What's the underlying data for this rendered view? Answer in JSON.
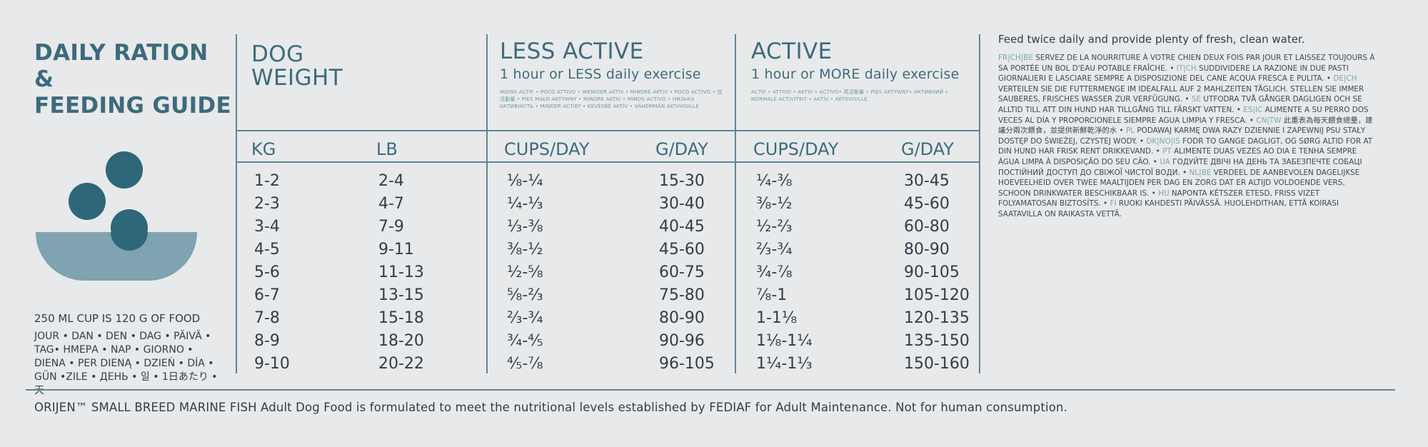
{
  "guide": {
    "title_line1": "DAILY RATION &",
    "title_line2": "FEEDING GUIDE",
    "cup_note": "250 ML CUP IS 120 G OF FOOD",
    "feed_words": "JOUR • DAN • DEN • DAG • PÄIVÄ • TAG• ΗΜΕΡΑ • NAP • GIORNO • DIENA • PER DIENĄ • DZIEŃ • DÍA • GÜN •ZILE • ДЕНЬ • 일 • 1日あたり • 天"
  },
  "headers": {
    "dog_weight_line1": "DOG",
    "dog_weight_line2": "WEIGHT",
    "less_active": "LESS ACTIVE",
    "less_active_sub": "1 hour or LESS daily exercise",
    "less_active_micro": "MOINS ACTIF • POCO ATTIVO • WENIGER AKTIV • MINDRE AKTIV • POCO ACTIVO • 低活動量 • PIES MAŁO AKTYWNY • MINDRE AKTIV • MINDS ACTIVO • НИЗЬКА АКТИВНІСТЬ • MINDER ACTIEF • KEVÉSBÉ AKTÍV • VÄHEMMÄN AKTIIVISILLE",
    "active": "ACTIVE",
    "active_sub": "1 hour or MORE daily exercise",
    "active_micro": "ACTIF • ATTIVO • AKTIV • ACTIVO• 高活動量 • PIES AKTYWNY• АКТИВНИЙ • NORMALE ACTIVITEIT • AKTÍV • AKTIIVISILLE",
    "kg": "KG",
    "lb": "LB",
    "cups_day": "CUPS/DAY",
    "g_day": "G/DAY"
  },
  "rows": [
    {
      "kg": "1-2",
      "lb": "2-4",
      "less_cups": "⅛-¼",
      "less_g": "15-30",
      "active_cups": "¼-⅜",
      "active_g": "30-45"
    },
    {
      "kg": "2-3",
      "lb": "4-7",
      "less_cups": "¼-⅓",
      "less_g": "30-40",
      "active_cups": "⅜-½",
      "active_g": "45-60"
    },
    {
      "kg": "3-4",
      "lb": "7-9",
      "less_cups": "⅓-⅜",
      "less_g": "40-45",
      "active_cups": "½-⅔",
      "active_g": "60-80"
    },
    {
      "kg": "4-5",
      "lb": "9-11",
      "less_cups": "⅜-½",
      "less_g": "45-60",
      "active_cups": "⅔-¾",
      "active_g": "80-90"
    },
    {
      "kg": "5-6",
      "lb": "11-13",
      "less_cups": "½-⅝",
      "less_g": "60-75",
      "active_cups": "¾-⅞",
      "active_g": "90-105"
    },
    {
      "kg": "6-7",
      "lb": "13-15",
      "less_cups": "⅝-⅔",
      "less_g": "75-80",
      "active_cups": "⅞-1",
      "active_g": "105-120"
    },
    {
      "kg": "7-8",
      "lb": "15-18",
      "less_cups": "⅔-¾",
      "less_g": "80-90",
      "active_cups": "1-1⅛",
      "active_g": "120-135"
    },
    {
      "kg": "8-9",
      "lb": "18-20",
      "less_cups": "¾-⅘",
      "less_g": "90-96",
      "active_cups": "1⅛-1¼",
      "active_g": "135-150"
    },
    {
      "kg": "9-10",
      "lb": "20-22",
      "less_cups": "⅘-⅞",
      "less_g": "96-105",
      "active_cups": "1¼-1⅓",
      "active_g": "150-160"
    }
  ],
  "right": {
    "intro": "Feed twice daily and provide plenty of fresh, clean water.",
    "fr_tag": "FR|CH|BE",
    "fr": "SERVEZ DE LA NOURRITURE À VOTRE CHIEN DEUX FOIS PAR JOUR ET LAISSEZ TOUJOURS À SA PORTÉE UN BOL D'EAU POTABLE FRAÎCHE. •",
    "it_tag": "IT|CH",
    "it": "SUDDIVIDERE LA RAZIONE IN DUE PASTI GIORNALIERI E LASCIARE SEMPRE A DISPOSIZIONE DEL CANE ACQUA FRESCA E PULITA. •",
    "de_tag": "DE|CH",
    "de": "VERTEILEN SIE DIE FUTTERMENGE IM IDEALFALL AUF 2 MAHLZEITEN TÄGLICH. STELLEN SIE IMMER SAUBERES, FRISCHES WASSER ZUR VERFÜGUNG. •",
    "se_tag": "SE",
    "se": "UTFODRA TVÅ GÅNGER DAGLIGEN OCH SE ALLTID TILL ATT DIN HUND HAR TILLGÅNG TILL FÄRSKT VATTEN. •",
    "es_tag": "ES|IC",
    "es": "ALIMENTE A SU PERRO DOS VECES AL DÍA Y PROPORCIONELE SIEMPRE AGUA LIMPIA Y FRESCA. •",
    "cn_tag": "CN|TW",
    "cn": "此重表為每天餵食總量，建議分兩次餵食，並提供新鮮乾淨的水 •",
    "pl_tag": "PL",
    "pl": "PODAWAJ KARMĘ DWA RAZY DZIENNIE I ZAPEWNIJ PSU STAŁY DOSTĘP DO ŚWIEŻEJ, CZYSTEJ WODY. •",
    "dk_tag": "DK|NO|IS",
    "dk": "FODR TO GANGE DAGLIGT, OG SØRG ALTID FOR AT DIN HUND HAR FRISK RENT DRIKKEVAND. •",
    "pt_tag": "PT",
    "pt": "ALIMENTE DUAS VEZES AO DIA E TENHA SEMPRE ÁGUA LIMPA À DISPOSIÇÃO DO SEU CÃO. •",
    "ua_tag": "UA",
    "ua": "ГОДУЙТЕ ДВІЧІ НА ДЕНЬ ТА ЗАБЕЗПЕЧТЕ СОБАЦІ ПОСТІЙНИЙ ДОСТУП ДО СВІЖОЇ ЧИСТОЇ ВОДИ. •",
    "nl_tag": "NL|BE",
    "nl": "VERDEEL DE AANBEVOLEN DAGELIJKSE HOEVEELHEID OVER TWEE MAALTIJDEN PER DAG EN ZORG DAT ER ALTIJD VOLDOENDE VERS, SCHOON DRINKWATER BESCHIKBAAR IS. •",
    "hu_tag": "HU",
    "hu": "NAPONTA KÉTSZER ETESD, FRISS VIZET FOLYAMATOSAN BIZTOSÍTS. •",
    "fi_tag": "FI",
    "fi": "RUOKI KAHDESTI PÄIVÄSSÄ. HUOLEHDITHAN, ETTÄ KOIRASI SAATAVILLA ON RAIKASTA VETTÄ."
  },
  "footer": "ORIJEN™ SMALL BREED MARINE FISH Adult Dog Food is formulated to meet the nutritional levels established by FEDIAF for Adult Maintenance. Not for human consumption.",
  "colors": {
    "accent": "#3d6b7c",
    "circle": "#2e6779",
    "bowl": "#7fa3b0",
    "text": "#2f3e4a",
    "bg": "#e8e9ea"
  }
}
